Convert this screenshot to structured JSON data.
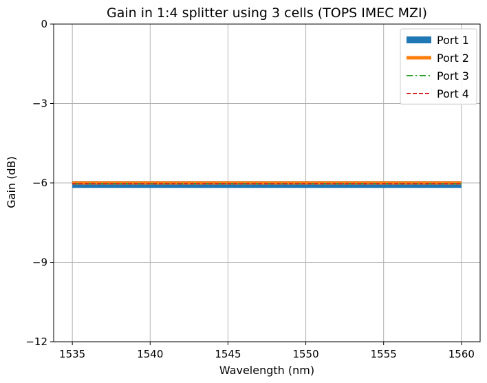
{
  "chart_data": {
    "type": "line",
    "title": "Gain in 1:4 splitter using 3 cells (TOPS IMEC MZI)",
    "xlabel": "Wavelength (nm)",
    "ylabel": "Gain (dB)",
    "xlim": [
      1533.8,
      1561.2
    ],
    "ylim": [
      -12,
      0
    ],
    "xticks": [
      1535,
      1540,
      1545,
      1550,
      1555,
      1560
    ],
    "yticks": [
      0,
      -3,
      -6,
      -9,
      -12
    ],
    "ytick_labels": [
      "0",
      "−3",
      "−6",
      "−9",
      "−12"
    ],
    "grid": true,
    "legend_position": "top-right",
    "x": [
      1535,
      1560
    ],
    "series": [
      {
        "name": "Port 1",
        "values": [
          -6.06,
          -6.06
        ],
        "color": "#1f77b4",
        "style": "solid",
        "weight": "thick"
      },
      {
        "name": "Port 2",
        "values": [
          -6.0,
          -6.0
        ],
        "color": "#ff7f0e",
        "style": "solid",
        "weight": "medium"
      },
      {
        "name": "Port 3",
        "values": [
          -6.03,
          -6.03
        ],
        "color": "#2ca02c",
        "style": "dashdot",
        "weight": "thin"
      },
      {
        "name": "Port 4",
        "values": [
          -6.03,
          -6.03
        ],
        "color": "#d62728",
        "style": "dashed",
        "weight": "thin"
      }
    ]
  }
}
